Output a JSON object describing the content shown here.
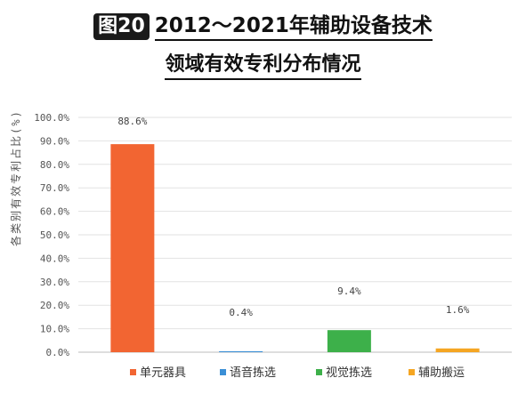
{
  "header": {
    "figure_label": "图20",
    "title_line1": "2012～2021年辅助设备技术",
    "title_line2": "领域有效专利分布情况"
  },
  "chart_data": {
    "type": "bar",
    "title": "2012～2021年辅助设备技术领域有效专利分布情况",
    "xlabel": "",
    "ylabel": "各类别有效专利占比(%)",
    "ylim": [
      0,
      100
    ],
    "y_ticks": [
      "0.0%",
      "10.0%",
      "20.0%",
      "30.0%",
      "40.0%",
      "50.0%",
      "60.0%",
      "70.0%",
      "80.0%",
      "90.0%",
      "100.0%"
    ],
    "grid": true,
    "legend_position": "bottom",
    "categories": [
      "单元器具",
      "语音拣选",
      "视觉拣选",
      "辅助搬运"
    ],
    "values": [
      88.6,
      0.4,
      9.4,
      1.6
    ],
    "data_labels": [
      "88.6%",
      "0.4%",
      "9.4%",
      "1.6%"
    ],
    "colors": [
      "#F26532",
      "#3A8FD6",
      "#3DB04A",
      "#F5A623"
    ]
  }
}
